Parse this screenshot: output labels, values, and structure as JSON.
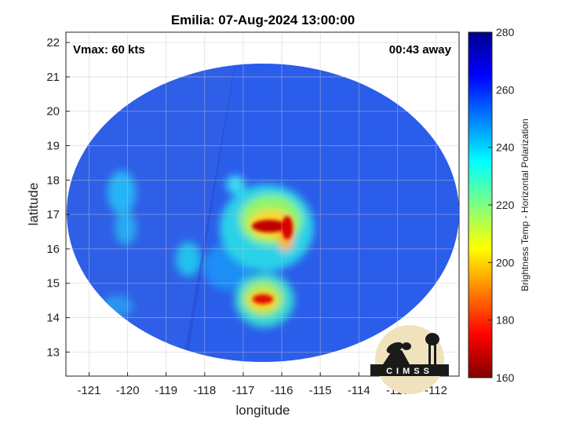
{
  "chart_data": {
    "type": "heatmap",
    "title": "Emilia: 07-Aug-2024 13:00:00",
    "xlabel": "longitude",
    "ylabel": "latitude",
    "xlim": [
      -121.6,
      -111.4
    ],
    "ylim": [
      12.3,
      22.3
    ],
    "x_ticks": [
      "-121",
      "-120",
      "-119",
      "-118",
      "-117",
      "-116",
      "-115",
      "-114",
      "-113",
      "-112"
    ],
    "y_ticks": [
      "13",
      "14",
      "15",
      "16",
      "17",
      "18",
      "19",
      "20",
      "21",
      "22"
    ],
    "grid": true,
    "annotations": {
      "vmax": "Vmax: 60 kts",
      "time_away": "00:43 away"
    },
    "colorbar": {
      "label": "Brightness Temp - Horizontal Polarization",
      "range": [
        160,
        280
      ],
      "ticks": [
        "160",
        "180",
        "200",
        "220",
        "240",
        "260",
        "280"
      ],
      "colormap": "jet"
    },
    "background_temp": 258,
    "swath_center": {
      "lon": -116.5,
      "lat": 17.3
    },
    "features": [
      {
        "name": "rainband-north-west",
        "lon": -116.4,
        "lat": 16.8,
        "min_temp": 170
      },
      {
        "name": "rainband-north-east",
        "lon": -115.9,
        "lat": 16.6,
        "min_temp": 172
      },
      {
        "name": "convection-south",
        "lon": -116.3,
        "lat": 14.4,
        "min_temp": 178
      },
      {
        "name": "outer-band-west",
        "lon": -119.9,
        "lat": 17.4,
        "min_temp": 232
      },
      {
        "name": "outer-band-south-west",
        "lon": -118.6,
        "lat": 15.3,
        "min_temp": 228
      }
    ]
  },
  "logo": {
    "text": "CIMSS"
  }
}
